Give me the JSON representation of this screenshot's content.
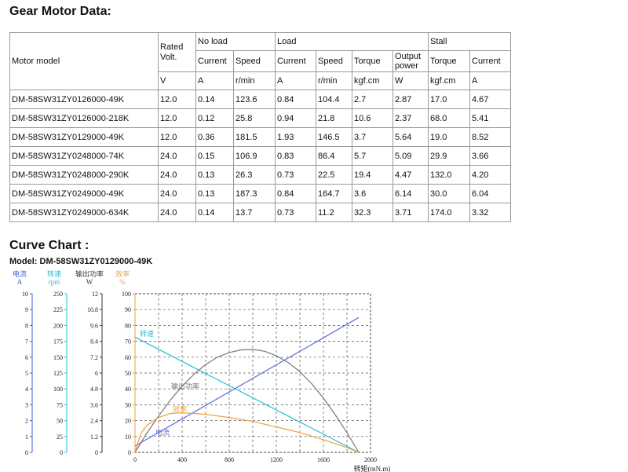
{
  "headings": {
    "motor_data": "Gear Motor Data:",
    "curve_chart": "Curve Chart :"
  },
  "table": {
    "motor_model": "Motor model",
    "rated_volt": "Rated Volt.",
    "no_load": "No load",
    "load": "Load",
    "stall": "Stall",
    "current": "Current",
    "speed": "Speed",
    "torque": "Torque",
    "output_power": "Output power",
    "units": {
      "v": "V",
      "a": "A",
      "rmin": "r/min",
      "kgf": "kgf.cm",
      "w": "W"
    },
    "rows": [
      [
        "DM-58SW31ZY0126000-49K",
        "12.0",
        "0.14",
        "123.6",
        "0.84",
        "104.4",
        "2.7",
        "2.87",
        "17.0",
        "4.67"
      ],
      [
        "DM-58SW31ZY0126000-218K",
        "12.0",
        "0.12",
        "25.8",
        "0.94",
        "21.8",
        "10.6",
        "2.37",
        "68.0",
        "5.41"
      ],
      [
        "DM-58SW31ZY0129000-49K",
        "12.0",
        "0.36",
        "181.5",
        "1.93",
        "146.5",
        "3.7",
        "5.64",
        "19.0",
        "8.52"
      ],
      [
        "DM-58SW31ZY0248000-74K",
        "24.0",
        "0.15",
        "106.9",
        "0.83",
        "86.4",
        "5.7",
        "5.09",
        "29.9",
        "3.66"
      ],
      [
        "DM-58SW31ZY0248000-290K",
        "24.0",
        "0.13",
        "26.3",
        "0.73",
        "22.5",
        "19.4",
        "4.47",
        "132.0",
        "4.20"
      ],
      [
        "DM-58SW31ZY0249000-49K",
        "24.0",
        "0.13",
        "187.3",
        "0.84",
        "164.7",
        "3.6",
        "6.14",
        "30.0",
        "6.04"
      ],
      [
        "DM-58SW31ZY0249000-634K",
        "24.0",
        "0.14",
        "13.7",
        "0.73",
        "11.2",
        "32.3",
        "3.71",
        "174.0",
        "3.32"
      ]
    ]
  },
  "chart_model": "Model: DM-58SW31ZY0129000-49K",
  "chart_data": {
    "type": "line",
    "title": "Model: DM-58SW31ZY0129000-49K",
    "xlabel": "转矩(mN.m)",
    "x_ticks": [
      "0",
      "400",
      "800",
      "1200",
      "1600",
      "2000"
    ],
    "xlim": [
      0,
      2000
    ],
    "grid": true,
    "axes": [
      {
        "label": "电流",
        "unit": "A",
        "color": "#3a5fd0",
        "ticks": [
          "0",
          "1",
          "2",
          "3",
          "4",
          "5",
          "6",
          "7",
          "8",
          "9",
          "10"
        ]
      },
      {
        "label": "转速",
        "unit": "rpm",
        "color": "#21c0d8",
        "ticks": [
          "0",
          "25",
          "50",
          "75",
          "100",
          "125",
          "150",
          "175",
          "200",
          "225",
          "250"
        ]
      },
      {
        "label": "输出功率",
        "unit": "W",
        "color": "#333333",
        "ticks": [
          "0",
          "1.2",
          "2.4",
          "3.6",
          "4.8",
          "6",
          "7.2",
          "8.4",
          "9.6",
          "10.8",
          "12"
        ]
      },
      {
        "label": "效率",
        "unit": "%",
        "color": "#f0a040",
        "ticks": [
          "0",
          "10",
          "20",
          "30",
          "40",
          "50",
          "60",
          "70",
          "80",
          "90",
          "100"
        ]
      }
    ],
    "series": [
      {
        "name": "转速",
        "color": "#21c0d8",
        "axis": 1,
        "x": [
          0,
          1900
        ],
        "y": [
          181.5,
          0
        ]
      },
      {
        "name": "电流",
        "color": "#5a6be0",
        "axis": 0,
        "x": [
          0,
          1900
        ],
        "y": [
          0.4,
          8.5
        ]
      },
      {
        "name": "输出功率",
        "color": "#777777",
        "axis": 2,
        "x": [
          0,
          100,
          200,
          300,
          400,
          500,
          600,
          700,
          800,
          900,
          1000,
          1100,
          1200,
          1300,
          1400,
          1500,
          1600,
          1700,
          1800,
          1900
        ],
        "y": [
          0,
          1.45,
          2.75,
          3.95,
          5.0,
          5.9,
          6.65,
          7.2,
          7.55,
          7.75,
          7.78,
          7.65,
          7.3,
          6.8,
          6.1,
          5.2,
          4.1,
          2.85,
          1.5,
          0
        ]
      },
      {
        "name": "效率",
        "color": "#f0a040",
        "axis": 3,
        "x": [
          0,
          50,
          100,
          200,
          300,
          400,
          600,
          800,
          1000,
          1200,
          1400,
          1600,
          1800,
          1900
        ],
        "y": [
          0,
          12,
          17,
          22,
          24.5,
          25,
          24,
          22,
          19.5,
          16,
          12.5,
          8,
          3,
          0
        ]
      }
    ]
  }
}
